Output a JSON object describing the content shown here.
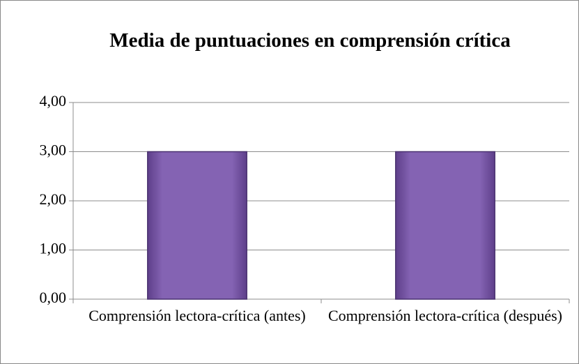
{
  "chart_data": {
    "type": "bar",
    "title": "Media de puntuaciones en comprensión crítica",
    "categories": [
      "Comprensión lectora-crítica (antes)",
      "Comprensión lectora-crítica (después)"
    ],
    "values": [
      3,
      3
    ],
    "color": "#7e5ba8",
    "ylim": [
      0,
      4
    ],
    "yticks": [
      {
        "value": 0,
        "label": "0,00"
      },
      {
        "value": 1,
        "label": "1,00"
      },
      {
        "value": 2,
        "label": "2,00"
      },
      {
        "value": 3,
        "label": "3,00"
      },
      {
        "value": 4,
        "label": "4,00"
      }
    ],
    "grid": true
  }
}
